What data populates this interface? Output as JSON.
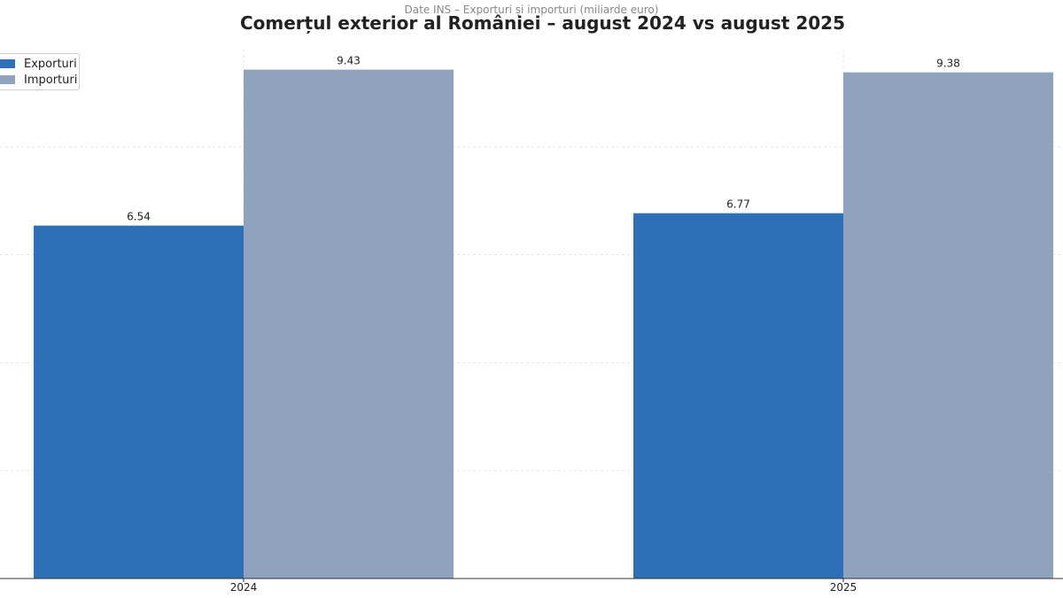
{
  "chart_data": {
    "type": "bar",
    "title": "Comerțul exterior al României – august 2024 vs august 2025",
    "subtitle": "Date INS – Exporturi și importuri (miliarde euro)",
    "categories": [
      "2024",
      "2025"
    ],
    "series": [
      {
        "name": "Exporturi",
        "values": [
          6.54,
          6.77
        ],
        "color": "#2d70b7",
        "labels": [
          "6.54",
          "6.77"
        ]
      },
      {
        "name": "Importuri",
        "values": [
          9.43,
          9.38
        ],
        "color": "#8fa3bf",
        "labels": [
          "9.43",
          "9.38"
        ]
      }
    ],
    "ylim": [
      0,
      9.9
    ],
    "grid": true,
    "legend": "top-left"
  }
}
